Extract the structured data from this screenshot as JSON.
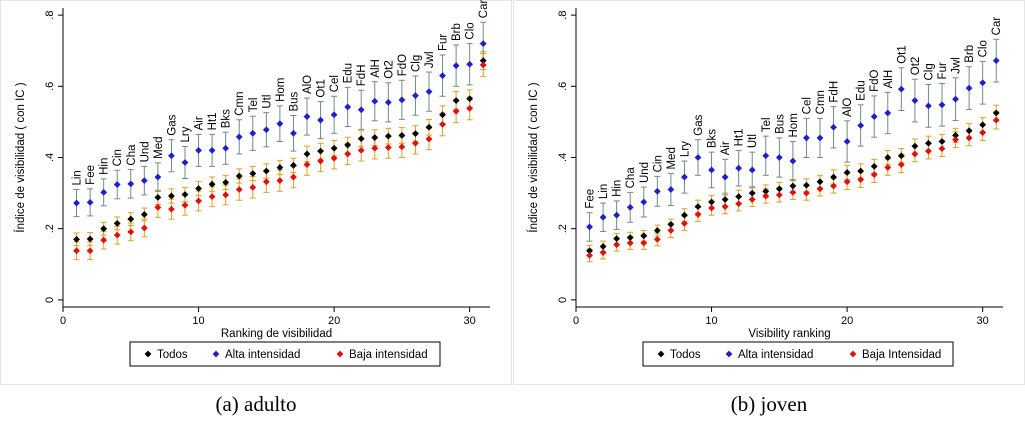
{
  "panels": [
    {
      "caption": "(a) adulto",
      "chart_data": {
        "type": "scatter",
        "xlabel": "Ranking de visibilidad",
        "ylabel": "Índice de visibilidad ( con IC )",
        "xlim": [
          0,
          31.5
        ],
        "ylim": [
          -0.02,
          0.82
        ],
        "xticks": [
          0,
          10,
          20,
          30
        ],
        "yticks": [
          0,
          0.2,
          0.4,
          0.6,
          0.8
        ],
        "ytick_labels": [
          "0",
          ".2",
          ".4",
          ".6",
          ".8"
        ],
        "grid": false,
        "legend_position": "bottom",
        "x": [
          1,
          2,
          3,
          4,
          5,
          6,
          7,
          8,
          9,
          10,
          11,
          12,
          13,
          14,
          15,
          16,
          17,
          18,
          19,
          20,
          21,
          22,
          23,
          24,
          25,
          26,
          27,
          28,
          29,
          30,
          31
        ],
        "category_labels": [
          "Lin",
          "Fee",
          "Hin",
          "Cin",
          "Cha",
          "Und",
          "Med",
          "Gas",
          "Lry",
          "Air",
          "Ht1",
          "Bks",
          "Cmn",
          "Tel",
          "Utl",
          "Hom",
          "Bus",
          "AlO",
          "Ot1",
          "Cel",
          "Edu",
          "FdH",
          "AlH",
          "Ot2",
          "FdO",
          "Clg",
          "Jwl",
          "Fur",
          "Brb",
          "Clo",
          "Car"
        ],
        "series": [
          {
            "name": "Todos",
            "color": "#000000",
            "values": [
              0.17,
              0.171,
              0.2,
              0.215,
              0.227,
              0.24,
              0.288,
              0.292,
              0.296,
              0.313,
              0.325,
              0.33,
              0.348,
              0.355,
              0.362,
              0.372,
              0.378,
              0.41,
              0.418,
              0.426,
              0.435,
              0.453,
              0.456,
              0.46,
              0.462,
              0.467,
              0.485,
              0.52,
              0.56,
              0.565,
              0.672
            ],
            "ci": [
              0.018,
              0.018,
              0.018,
              0.018,
              0.018,
              0.018,
              0.02,
              0.02,
              0.02,
              0.02,
              0.02,
              0.02,
              0.02,
              0.02,
              0.02,
              0.02,
              0.02,
              0.022,
              0.022,
              0.022,
              0.022,
              0.022,
              0.022,
              0.022,
              0.022,
              0.022,
              0.022,
              0.025,
              0.025,
              0.025,
              0.025
            ]
          },
          {
            "name": "Alta intensidad",
            "color": "#1f1fcc",
            "values": [
              0.272,
              0.274,
              0.302,
              0.324,
              0.326,
              0.335,
              0.345,
              0.405,
              0.386,
              0.42,
              0.42,
              0.426,
              0.458,
              0.468,
              0.478,
              0.495,
              0.468,
              0.515,
              0.505,
              0.52,
              0.542,
              0.534,
              0.558,
              0.555,
              0.562,
              0.574,
              0.585,
              0.63,
              0.658,
              0.662,
              0.72
            ],
            "ci": [
              0.038,
              0.038,
              0.038,
              0.04,
              0.04,
              0.04,
              0.04,
              0.045,
              0.045,
              0.045,
              0.045,
              0.045,
              0.048,
              0.048,
              0.048,
              0.05,
              0.05,
              0.052,
              0.052,
              0.052,
              0.055,
              0.055,
              0.055,
              0.055,
              0.055,
              0.055,
              0.055,
              0.058,
              0.058,
              0.058,
              0.06
            ]
          },
          {
            "name": "Baja intensidad",
            "color": "#e01010",
            "values": [
              0.138,
              0.138,
              0.168,
              0.182,
              0.191,
              0.202,
              0.26,
              0.255,
              0.266,
              0.278,
              0.29,
              0.295,
              0.31,
              0.316,
              0.332,
              0.335,
              0.345,
              0.38,
              0.39,
              0.398,
              0.41,
              0.42,
              0.426,
              0.428,
              0.43,
              0.44,
              0.452,
              0.493,
              0.53,
              0.538,
              0.66
            ],
            "ci": [
              0.025,
              0.025,
              0.025,
              0.025,
              0.025,
              0.025,
              0.028,
              0.028,
              0.028,
              0.028,
              0.028,
              0.028,
              0.03,
              0.03,
              0.03,
              0.03,
              0.03,
              0.03,
              0.03,
              0.03,
              0.03,
              0.03,
              0.03,
              0.03,
              0.03,
              0.03,
              0.03,
              0.032,
              0.032,
              0.032,
              0.032
            ]
          }
        ]
      }
    },
    {
      "caption": "(b) joven",
      "chart_data": {
        "type": "scatter",
        "xlabel": "Visibility ranking",
        "ylabel": "Índice de visibilidad ( con IC )",
        "xlim": [
          0,
          31.5
        ],
        "ylim": [
          -0.02,
          0.82
        ],
        "xticks": [
          0,
          10,
          20,
          30
        ],
        "yticks": [
          0,
          0.2,
          0.4,
          0.6,
          0.8
        ],
        "ytick_labels": [
          "0",
          ".2",
          ".4",
          ".6",
          ".8"
        ],
        "grid": false,
        "legend_position": "bottom",
        "x": [
          1,
          2,
          3,
          4,
          5,
          6,
          7,
          8,
          9,
          10,
          11,
          12,
          13,
          14,
          15,
          16,
          17,
          18,
          19,
          20,
          21,
          22,
          23,
          24,
          25,
          26,
          27,
          28,
          29,
          30,
          31
        ],
        "category_labels": [
          "Fee",
          "Lin",
          "Hin",
          "Cha",
          "Und",
          "Cin",
          "Med",
          "Lry",
          "Gas",
          "Bks",
          "Air",
          "Ht1",
          "Utl",
          "Tel",
          "Bus",
          "Hom",
          "Cel",
          "Cmn",
          "FdH",
          "AlO",
          "Edu",
          "FdO",
          "AlH",
          "Ot1",
          "Ot2",
          "Clg",
          "Fur",
          "Jwl",
          "Brb",
          "Clo",
          "Car"
        ],
        "series": [
          {
            "name": "Todos",
            "color": "#000000",
            "values": [
              0.138,
              0.15,
              0.172,
              0.175,
              0.18,
              0.195,
              0.212,
              0.238,
              0.262,
              0.275,
              0.282,
              0.29,
              0.3,
              0.305,
              0.312,
              0.32,
              0.322,
              0.332,
              0.345,
              0.358,
              0.362,
              0.375,
              0.4,
              0.405,
              0.432,
              0.44,
              0.445,
              0.462,
              0.475,
              0.492,
              0.525
            ],
            "ci": [
              0.015,
              0.015,
              0.015,
              0.015,
              0.015,
              0.015,
              0.015,
              0.018,
              0.018,
              0.018,
              0.018,
              0.018,
              0.018,
              0.018,
              0.018,
              0.018,
              0.018,
              0.018,
              0.02,
              0.02,
              0.02,
              0.02,
              0.02,
              0.02,
              0.02,
              0.02,
              0.02,
              0.02,
              0.02,
              0.02,
              0.022
            ]
          },
          {
            "name": "Alta intensidad",
            "color": "#1f1fcc",
            "values": [
              0.205,
              0.232,
              0.238,
              0.26,
              0.275,
              0.305,
              0.31,
              0.345,
              0.4,
              0.365,
              0.345,
              0.37,
              0.365,
              0.405,
              0.4,
              0.39,
              0.455,
              0.455,
              0.485,
              0.445,
              0.49,
              0.515,
              0.525,
              0.592,
              0.56,
              0.545,
              0.548,
              0.564,
              0.595,
              0.61,
              0.672
            ],
            "ci": [
              0.04,
              0.04,
              0.04,
              0.042,
              0.042,
              0.042,
              0.045,
              0.045,
              0.05,
              0.05,
              0.05,
              0.05,
              0.05,
              0.055,
              0.055,
              0.055,
              0.055,
              0.055,
              0.058,
              0.058,
              0.058,
              0.058,
              0.058,
              0.06,
              0.06,
              0.06,
              0.06,
              0.06,
              0.06,
              0.06,
              0.06
            ]
          },
          {
            "name": "Baja Intensidad",
            "color": "#e01010",
            "values": [
              0.125,
              0.133,
              0.155,
              0.16,
              0.16,
              0.17,
              0.195,
              0.215,
              0.24,
              0.258,
              0.262,
              0.27,
              0.282,
              0.292,
              0.295,
              0.302,
              0.3,
              0.312,
              0.32,
              0.332,
              0.338,
              0.352,
              0.372,
              0.38,
              0.41,
              0.418,
              0.425,
              0.45,
              0.455,
              0.47,
              0.505
            ],
            "ci": [
              0.018,
              0.018,
              0.018,
              0.018,
              0.018,
              0.018,
              0.02,
              0.02,
              0.02,
              0.02,
              0.02,
              0.02,
              0.02,
              0.02,
              0.02,
              0.02,
              0.02,
              0.02,
              0.02,
              0.022,
              0.022,
              0.022,
              0.022,
              0.022,
              0.022,
              0.022,
              0.022,
              0.022,
              0.022,
              0.022,
              0.025
            ]
          }
        ]
      }
    }
  ]
}
